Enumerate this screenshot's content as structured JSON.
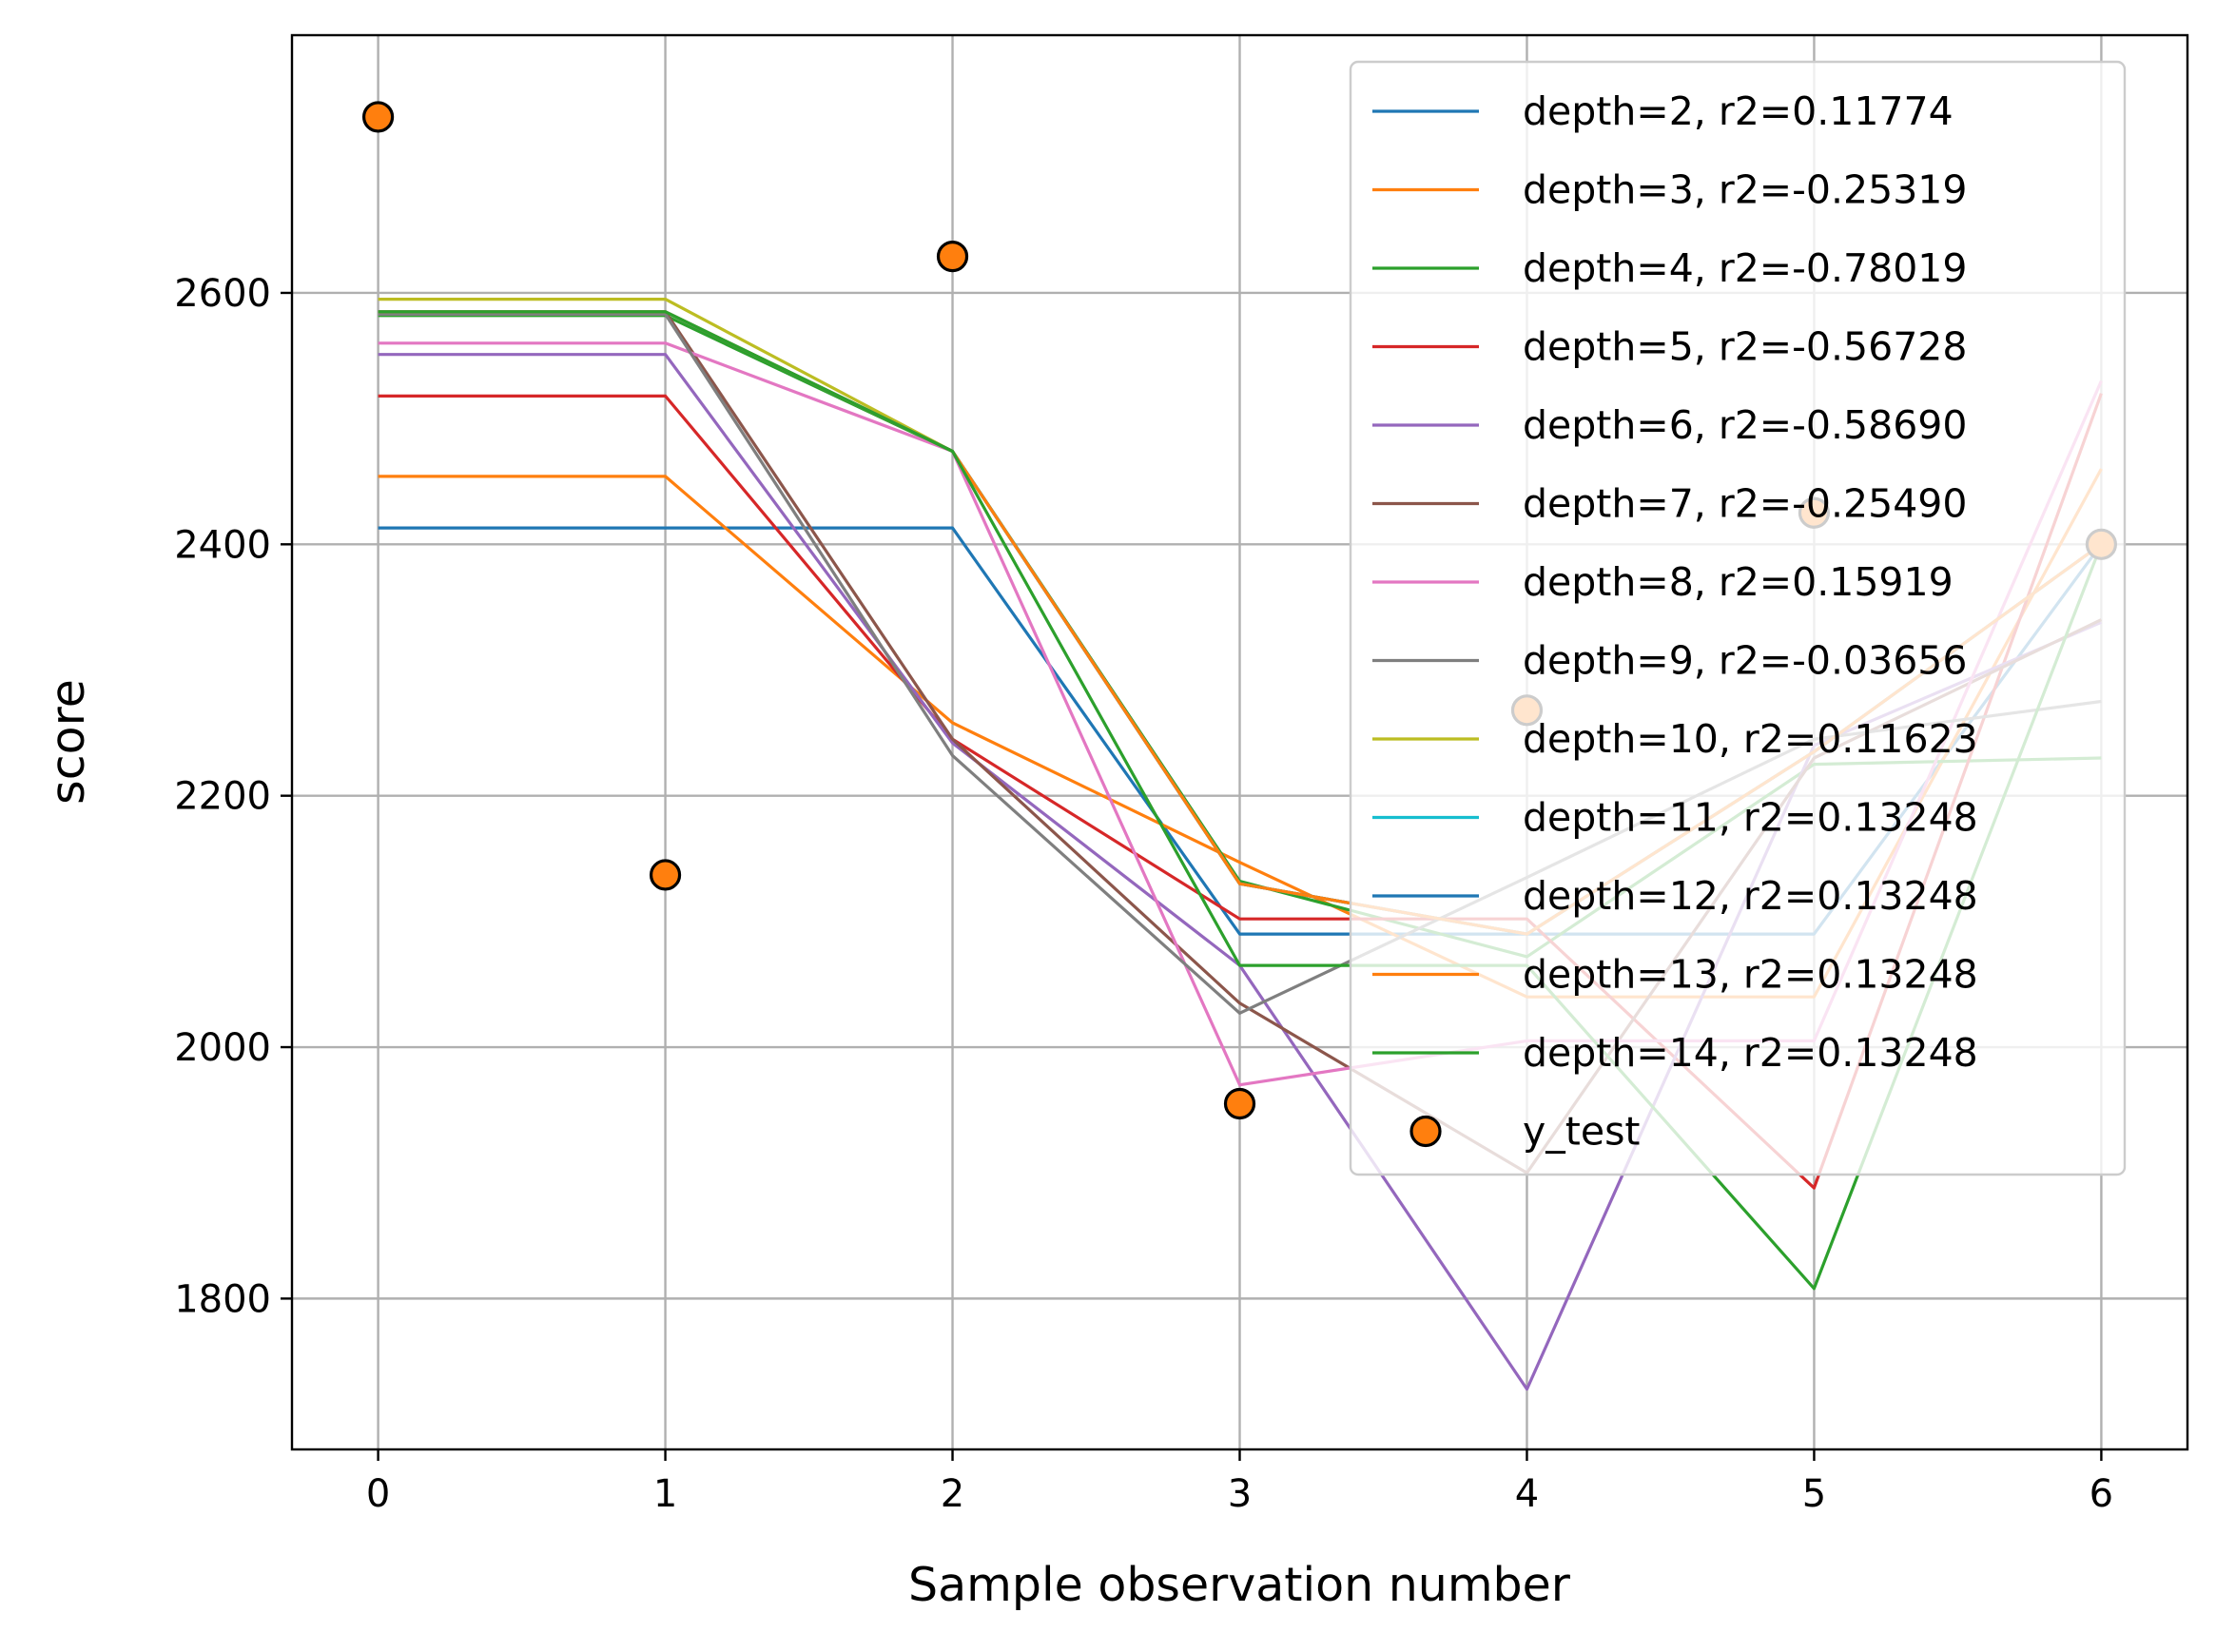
{
  "chart_data": {
    "type": "line",
    "title": "",
    "xlabel": "Sample observation number",
    "ylabel": "score",
    "xlim": [
      -0.3,
      6.3
    ],
    "ylim": [
      1680,
      2805
    ],
    "x": [
      0,
      1,
      2,
      3,
      4,
      5,
      6
    ],
    "xticks": [
      0,
      1,
      2,
      3,
      4,
      5,
      6
    ],
    "yticks": [
      1800,
      2000,
      2200,
      2400,
      2600
    ],
    "grid": true,
    "legend_position": "top-right",
    "series": [
      {
        "name": "depth=2, r2=0.11774",
        "color": "#1f77b4",
        "values": [
          2413,
          2413,
          2413,
          2090,
          2090,
          2090,
          2400
        ]
      },
      {
        "name": "depth=3, r2=-0.25319",
        "color": "#ff7f0e",
        "values": [
          2454,
          2454,
          2258,
          2147,
          2040,
          2040,
          2460
        ]
      },
      {
        "name": "depth=4, r2=-0.78019",
        "color": "#2ca02c",
        "values": [
          2582,
          2582,
          2474,
          2132,
          2072,
          2225,
          2230
        ]
      },
      {
        "name": "depth=5, r2=-0.56728",
        "color": "#d62728",
        "values": [
          2518,
          2518,
          2245,
          2102,
          2102,
          1888,
          2520
        ]
      },
      {
        "name": "depth=6, r2=-0.58690",
        "color": "#9467bd",
        "values": [
          2551,
          2551,
          2242,
          2065,
          1728,
          2240,
          2338
        ]
      },
      {
        "name": "depth=7, r2=-0.25490",
        "color": "#8c564b",
        "values": [
          2585,
          2585,
          2245,
          2035,
          1900,
          2230,
          2340
        ]
      },
      {
        "name": "depth=8, r2=0.15919",
        "color": "#e377c2",
        "values": [
          2560,
          2560,
          2474,
          1970,
          2005,
          2005,
          2530
        ]
      },
      {
        "name": "depth=9, r2=-0.03656",
        "color": "#7f7f7f",
        "values": [
          2583,
          2583,
          2232,
          2027,
          2135,
          2245,
          2275
        ]
      },
      {
        "name": "depth=10, r2=0.11623",
        "color": "#bcbd22",
        "values": [
          2595,
          2595,
          2474,
          2130,
          2090,
          2235,
          2400
        ]
      },
      {
        "name": "depth=11, r2=0.13248",
        "color": "#17becf",
        "values": [
          2585,
          2585,
          2474,
          2130,
          2090,
          2235,
          2400
        ]
      },
      {
        "name": "depth=12, r2=0.13248",
        "color": "#1f77b4",
        "values": [
          2585,
          2585,
          2474,
          2130,
          2090,
          2235,
          2400
        ]
      },
      {
        "name": "depth=13, r2=0.13248",
        "color": "#ff7f0e",
        "values": [
          2585,
          2585,
          2474,
          2130,
          2090,
          2235,
          2400
        ]
      },
      {
        "name": "depth=14, r2=0.13248",
        "color": "#2ca02c",
        "values": [
          2585,
          2585,
          2474,
          2065,
          2065,
          1808,
          2400
        ]
      }
    ],
    "scatter": {
      "name": "y_test",
      "face_color": "#ff7f0e",
      "edge_color": "#000000",
      "x": [
        0,
        1,
        2,
        3,
        4,
        5,
        6
      ],
      "y": [
        2740,
        2137,
        2629,
        1955,
        2268,
        2425,
        2400
      ]
    }
  }
}
